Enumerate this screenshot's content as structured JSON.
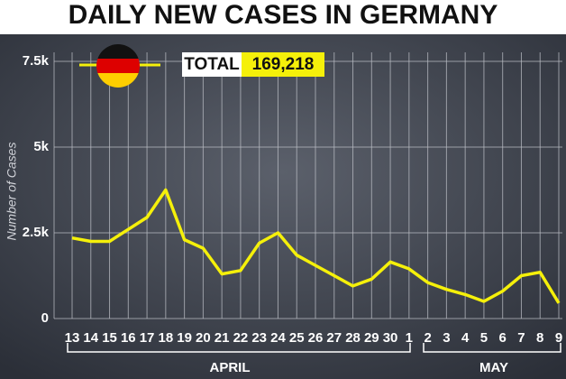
{
  "chart_data": {
    "type": "line",
    "title": "DAILY NEW CASES IN GERMANY",
    "y_label": "Number of Cases",
    "total_label": "TOTAL",
    "total_value": "169,218",
    "groups": [
      "APRIL",
      "MAY"
    ],
    "categories": [
      "13",
      "14",
      "15",
      "16",
      "17",
      "18",
      "19",
      "20",
      "21",
      "22",
      "23",
      "24",
      "25",
      "26",
      "27",
      "28",
      "29",
      "30",
      "1",
      "2",
      "3",
      "4",
      "5",
      "6",
      "7",
      "8",
      "9"
    ],
    "values": [
      2350,
      2250,
      2250,
      2600,
      2950,
      3750,
      2300,
      2050,
      1300,
      1400,
      2200,
      2500,
      1850,
      1550,
      1250,
      950,
      1150,
      1650,
      1450,
      1050,
      850,
      700,
      500,
      800,
      1250,
      1350,
      450
    ],
    "color": "#f5f00a",
    "ylim": [
      0,
      7500
    ],
    "yticks": [
      0,
      {
        "value": 2500,
        "label": "2.5k"
      },
      {
        "value": 5000,
        "label": "5k"
      },
      {
        "value": 7500,
        "label": "7.5k"
      }
    ],
    "grid": true
  }
}
